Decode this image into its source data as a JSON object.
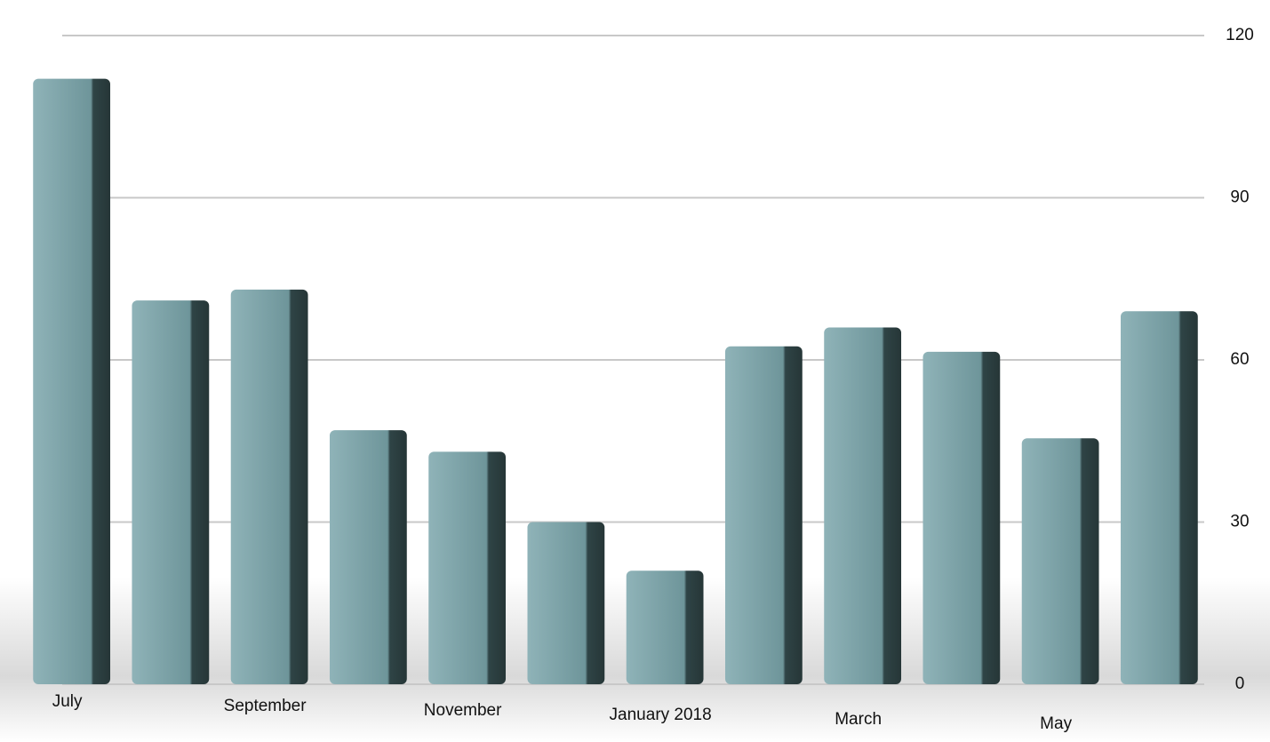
{
  "chart_data": {
    "type": "bar",
    "categories": [
      "July",
      null,
      "September",
      null,
      "November",
      null,
      "January 2018",
      null,
      "March",
      null,
      "May",
      null
    ],
    "values": [
      112,
      71,
      73,
      47,
      43,
      30,
      21,
      62.5,
      66,
      61.5,
      45.5,
      69
    ],
    "color": "#6e959a",
    "ylim": [
      0,
      120
    ],
    "yticks": [
      0,
      30,
      60,
      90,
      120
    ],
    "grid": true
  }
}
